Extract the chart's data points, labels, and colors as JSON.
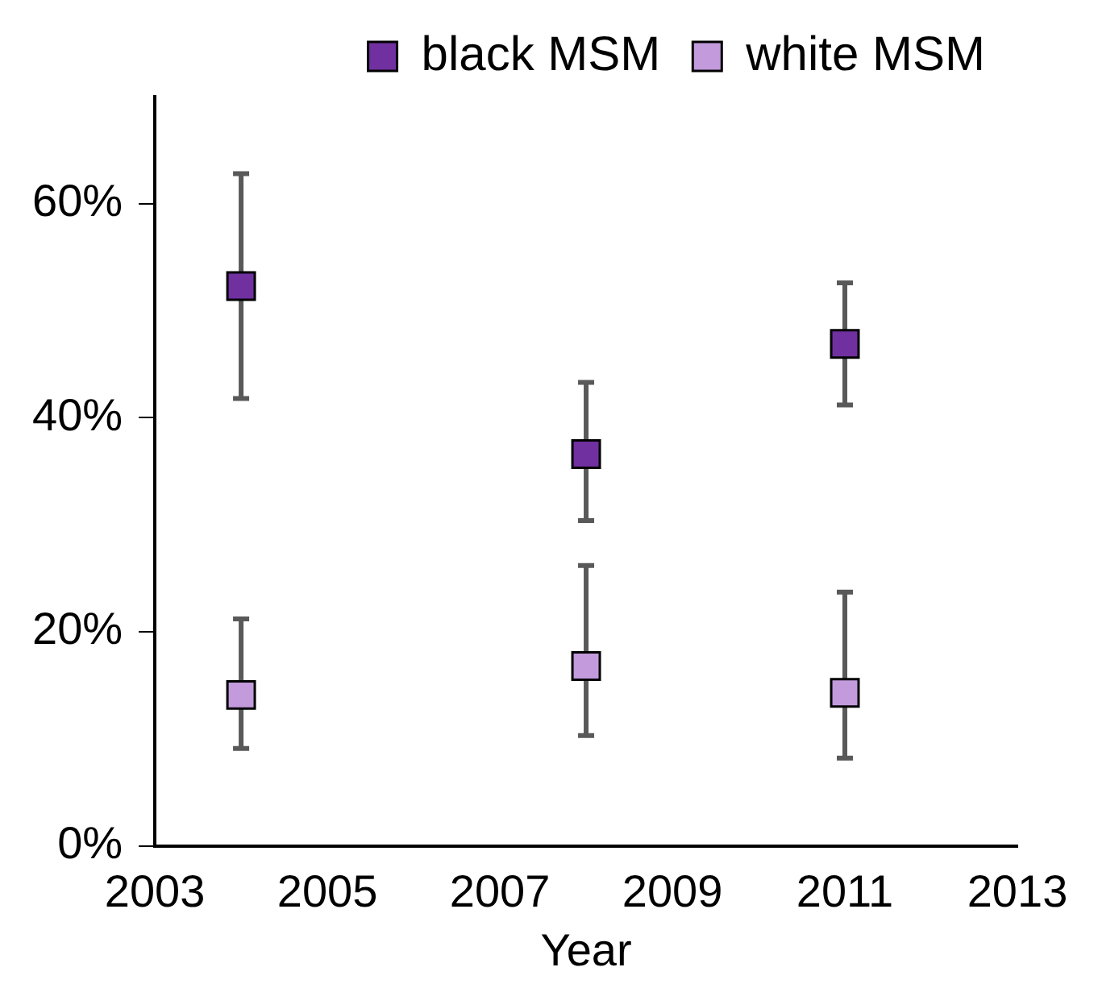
{
  "chart_data": {
    "type": "scatter",
    "xlabel": "Year",
    "x": [
      2004,
      2008,
      2011
    ],
    "series": [
      {
        "name": "black MSM",
        "color": "#7030a0",
        "values": [
          52.3,
          36.6,
          46.9
        ],
        "errors": [
          [
            41.8,
            62.8
          ],
          [
            30.4,
            43.3
          ],
          [
            41.2,
            52.6
          ]
        ]
      },
      {
        "name": "white MSM",
        "color": "#c39bdd",
        "values": [
          14.1,
          16.8,
          14.3
        ],
        "errors": [
          [
            9.1,
            21.2
          ],
          [
            10.3,
            26.2
          ],
          [
            8.2,
            23.7
          ]
        ]
      }
    ],
    "xlim": [
      2003,
      2013
    ],
    "xticks": [
      2003,
      2005,
      2007,
      2009,
      2011,
      2013
    ],
    "ylim": [
      0,
      70
    ],
    "yticks": [
      {
        "value": 0,
        "label": "0%"
      },
      {
        "value": 20,
        "label": "20%"
      },
      {
        "value": 40,
        "label": "40%"
      },
      {
        "value": 60,
        "label": "60%"
      }
    ],
    "marker": "square",
    "legend": "top",
    "grid": false
  }
}
